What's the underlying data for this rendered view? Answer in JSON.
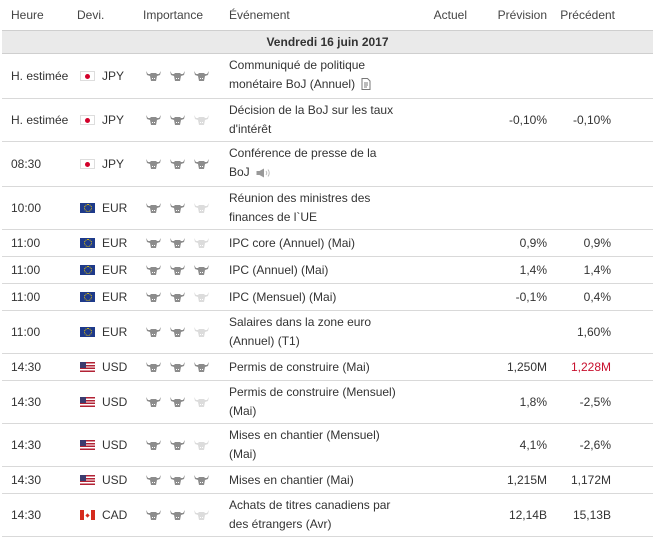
{
  "header": {
    "time": "Heure",
    "currency": "Devi.",
    "importance": "Importance",
    "event": "Événement",
    "actual": "Actuel",
    "forecast": "Prévision",
    "previous": "Précédent"
  },
  "date": "Vendredi 16 juin 2017",
  "colors": {
    "bull_active": "#8c8c8c",
    "bull_inactive": "#dcdcdc",
    "previous_highlight": "#c8102e"
  },
  "rows": [
    {
      "time": "H. estimée",
      "flag": "jp",
      "currency": "JPY",
      "importance": 3,
      "event_l1": "Communiqué de politique",
      "event_l2": "monétaire BoJ (Annuel)",
      "icon": "document-icon",
      "actual": "",
      "forecast": "",
      "previous": "",
      "highlight": false
    },
    {
      "time": "H. estimée",
      "flag": "jp",
      "currency": "JPY",
      "importance": 2,
      "event_l1": "Décision de la BoJ sur les taux",
      "event_l2": "d'intérêt",
      "icon": "",
      "actual": "",
      "forecast": "-0,10%",
      "previous": "-0,10%",
      "highlight": false
    },
    {
      "time": "08:30",
      "flag": "jp",
      "currency": "JPY",
      "importance": 3,
      "event_l1": "Conférence de presse de la",
      "event_l2": "BoJ",
      "icon": "speaker-icon",
      "actual": "",
      "forecast": "",
      "previous": "",
      "highlight": false
    },
    {
      "time": "10:00",
      "flag": "eu",
      "currency": "EUR",
      "importance": 2,
      "event_l1": "Réunion des ministres des",
      "event_l2": "finances de l`UE",
      "icon": "",
      "actual": "",
      "forecast": "",
      "previous": "",
      "highlight": false
    },
    {
      "time": "11:00",
      "flag": "eu",
      "currency": "EUR",
      "importance": 2,
      "event_l1": "IPC core (Annuel) (Mai)",
      "event_l2": "",
      "icon": "",
      "actual": "",
      "forecast": "0,9%",
      "previous": "0,9%",
      "highlight": false
    },
    {
      "time": "11:00",
      "flag": "eu",
      "currency": "EUR",
      "importance": 3,
      "event_l1": "IPC (Annuel) (Mai)",
      "event_l2": "",
      "icon": "",
      "actual": "",
      "forecast": "1,4%",
      "previous": "1,4%",
      "highlight": false
    },
    {
      "time": "11:00",
      "flag": "eu",
      "currency": "EUR",
      "importance": 2,
      "event_l1": "IPC (Mensuel) (Mai)",
      "event_l2": "",
      "icon": "",
      "actual": "",
      "forecast": "-0,1%",
      "previous": "0,4%",
      "highlight": false
    },
    {
      "time": "11:00",
      "flag": "eu",
      "currency": "EUR",
      "importance": 2,
      "event_l1": "Salaires dans la zone euro",
      "event_l2": "(Annuel) (T1)",
      "icon": "",
      "actual": "",
      "forecast": "",
      "previous": "1,60%",
      "highlight": false
    },
    {
      "time": "14:30",
      "flag": "us",
      "currency": "USD",
      "importance": 3,
      "event_l1": "Permis de construire (Mai)",
      "event_l2": "",
      "icon": "",
      "actual": "",
      "forecast": "1,250M",
      "previous": "1,228M",
      "highlight": true
    },
    {
      "time": "14:30",
      "flag": "us",
      "currency": "USD",
      "importance": 2,
      "event_l1": "Permis de construire (Mensuel)",
      "event_l2": "(Mai)",
      "icon": "",
      "actual": "",
      "forecast": "1,8%",
      "previous": "-2,5%",
      "highlight": false
    },
    {
      "time": "14:30",
      "flag": "us",
      "currency": "USD",
      "importance": 2,
      "event_l1": "Mises en chantier (Mensuel)",
      "event_l2": "(Mai)",
      "icon": "",
      "actual": "",
      "forecast": "4,1%",
      "previous": "-2,6%",
      "highlight": false
    },
    {
      "time": "14:30",
      "flag": "us",
      "currency": "USD",
      "importance": 3,
      "event_l1": "Mises en chantier (Mai)",
      "event_l2": "",
      "icon": "",
      "actual": "",
      "forecast": "1,215M",
      "previous": "1,172M",
      "highlight": false
    },
    {
      "time": "14:30",
      "flag": "ca",
      "currency": "CAD",
      "importance": 2,
      "event_l1": "Achats de titres canadiens par",
      "event_l2": "des étrangers (Avr)",
      "icon": "",
      "actual": "",
      "forecast": "12,14B",
      "previous": "15,13B",
      "highlight": false
    }
  ]
}
